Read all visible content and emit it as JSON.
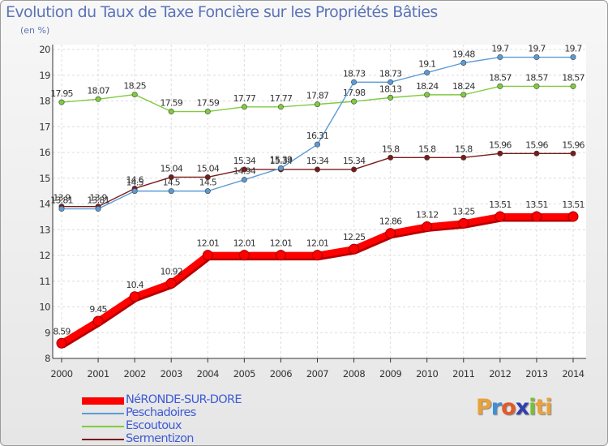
{
  "title": "Evolution du Taux de Taxe Foncière sur les Propriétés Bâties",
  "unit_label": "(en %)",
  "logo": {
    "letters": [
      "P",
      "r",
      "o",
      "x",
      "i",
      "t",
      "i"
    ],
    "colors": [
      "#e8a23a",
      "#3f8fd6",
      "#e35a2a",
      "#2f3fb0",
      "#7abd3a",
      "#e8a23a",
      "#e8a23a"
    ]
  },
  "chart_data": {
    "type": "line",
    "x": [
      "2000",
      "2001",
      "2002",
      "2003",
      "2004",
      "2005",
      "2006",
      "2007",
      "2008",
      "2009",
      "2010",
      "2011",
      "2012",
      "2013",
      "2014"
    ],
    "ylim": [
      8,
      20
    ],
    "yticks": [
      "8",
      "9",
      "10",
      "11",
      "12",
      "13",
      "14",
      "15",
      "16",
      "17",
      "18",
      "19",
      "20"
    ],
    "grid": true,
    "legend_position": "bottom-left",
    "series": [
      {
        "name": "NéRONDE-SUR-DORE",
        "color": "#ff0000",
        "values": [
          8.59,
          9.45,
          10.4,
          10.92,
          12.01,
          12.01,
          12.01,
          12.01,
          12.25,
          12.86,
          13.12,
          13.25,
          13.51,
          13.51,
          13.51
        ],
        "labels": [
          "8.59",
          "9.45",
          "10.4",
          "10.92",
          "12.01",
          "12.01",
          "12.01",
          "12.01",
          "12.25",
          "12.86",
          "13.12",
          "13.25",
          "13.51",
          "13.51",
          "13.51"
        ]
      },
      {
        "name": "Peschadoires",
        "color": "#5b9bd5",
        "values": [
          13.81,
          13.81,
          14.5,
          14.5,
          14.5,
          14.94,
          15.39,
          16.31,
          18.73,
          18.73,
          19.1,
          19.48,
          19.7,
          19.7,
          19.7
        ],
        "labels": [
          "13.81",
          "13.81",
          "14.5",
          "14.5",
          "14.5",
          "14.94",
          "15.39",
          "16.31",
          "18.73",
          "18.73",
          "19.1",
          "19.48",
          "19.7",
          "19.7",
          "19.7"
        ]
      },
      {
        "name": "Escoutoux",
        "color": "#7fcc3f",
        "values": [
          17.95,
          18.07,
          18.25,
          17.59,
          17.59,
          17.77,
          17.77,
          17.87,
          17.98,
          18.13,
          18.24,
          18.24,
          18.57,
          18.57,
          18.57
        ],
        "labels": [
          "17.95",
          "18.07",
          "18.25",
          "17.59",
          "17.59",
          "17.77",
          "17.77",
          "17.87",
          "17.98",
          "18.13",
          "18.24",
          "18.24",
          "18.57",
          "18.57",
          "18.57"
        ]
      },
      {
        "name": "Sermentizon",
        "color": "#7a1a1a",
        "values": [
          13.9,
          13.9,
          14.6,
          15.04,
          15.04,
          15.34,
          15.34,
          15.34,
          15.34,
          15.8,
          15.8,
          15.8,
          15.96,
          15.96,
          15.96
        ],
        "labels": [
          "13.9",
          "13.9",
          "14.6",
          "15.04",
          "15.04",
          "15.34",
          "15.34",
          "15.34",
          "15.34",
          "15.8",
          "15.8",
          "15.8",
          "15.96",
          "15.96",
          "15.96"
        ]
      }
    ]
  }
}
